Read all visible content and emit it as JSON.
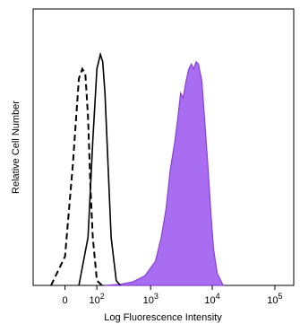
{
  "chart_data": {
    "type": "area",
    "xlabel": "Log Fluorescence Intensity",
    "ylabel": "Relative Cell Number",
    "x_scale": "biexponential",
    "x_ticks": [
      {
        "value": 0,
        "base": "0",
        "exp": ""
      },
      {
        "value": 100,
        "base": "10",
        "exp": "2"
      },
      {
        "value": 1000,
        "base": "10",
        "exp": "3"
      },
      {
        "value": 10000,
        "base": "10",
        "exp": "4"
      },
      {
        "value": 100000,
        "base": "10",
        "exp": "5"
      }
    ],
    "xlim": [
      -100,
      200000
    ],
    "ylim": [
      0,
      1
    ],
    "grid": false,
    "legend": "none",
    "series": [
      {
        "style": "dashed",
        "color": "#000000",
        "fill": "none",
        "x": [
          -30,
          0,
          15,
          30,
          40,
          50,
          60,
          70,
          80,
          100,
          130
        ],
        "y": [
          0,
          0.12,
          0.5,
          0.86,
          0.9,
          0.88,
          0.7,
          0.4,
          0.2,
          0.02,
          0
        ]
      },
      {
        "style": "solid",
        "color": "#000000",
        "fill": "none",
        "x": [
          30,
          60,
          80,
          100,
          120,
          135,
          150,
          170,
          200,
          250,
          300
        ],
        "y": [
          0,
          0.2,
          0.6,
          0.9,
          0.96,
          0.93,
          0.8,
          0.55,
          0.2,
          0.02,
          0
        ]
      },
      {
        "style": "filled",
        "color": "#8b3fd9",
        "fill": "#a86df0",
        "x": [
          150,
          300,
          500,
          800,
          1200,
          1500,
          1800,
          2100,
          2500,
          2800,
          3100,
          3400,
          3800,
          4200,
          4600,
          5000,
          5500,
          6000,
          6800,
          7500,
          8500,
          9500,
          10500,
          12000,
          15000
        ],
        "y": [
          0,
          0.005,
          0.015,
          0.04,
          0.1,
          0.2,
          0.32,
          0.48,
          0.6,
          0.7,
          0.8,
          0.78,
          0.85,
          0.9,
          0.92,
          0.9,
          0.93,
          0.92,
          0.85,
          0.7,
          0.5,
          0.3,
          0.15,
          0.05,
          0
        ]
      }
    ]
  }
}
